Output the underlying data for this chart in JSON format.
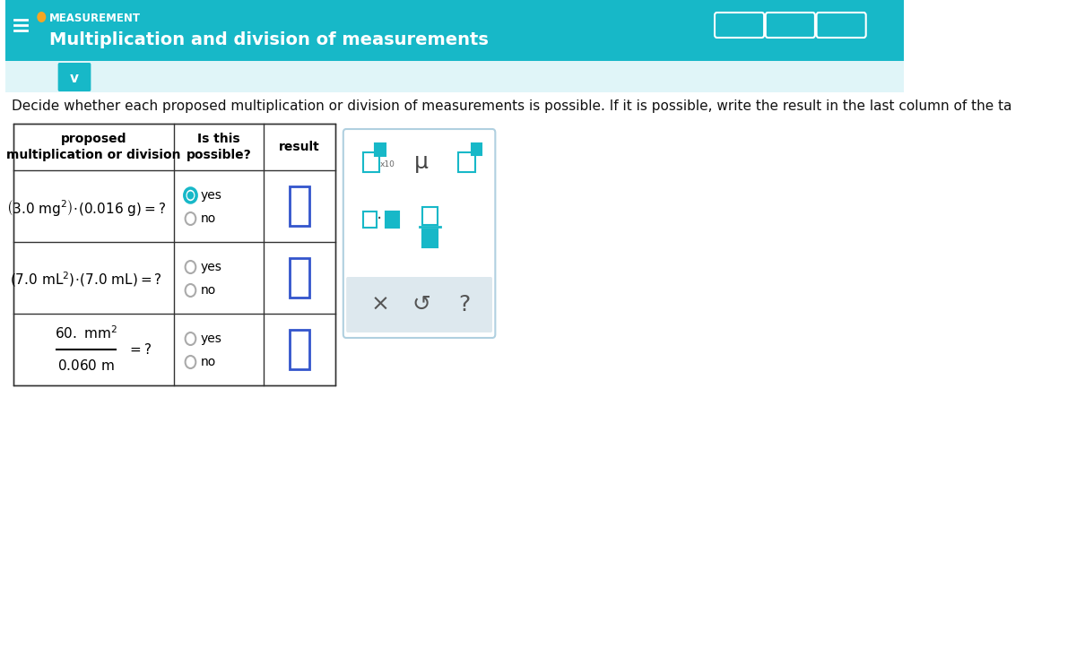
{
  "header_bg": "#17b8c8",
  "header_text_color": "#ffffff",
  "header_label": "MEASUREMENT",
  "header_title": "Multiplication and division of measurements",
  "body_bg": "#ffffff",
  "instruction_text": "Decide whether each proposed multiplication or division of measurements is possible. If it is possible, write the result in the last column of the ta",
  "table_border_color": "#333333",
  "table_header_bg": "#ffffff",
  "col1_header": "proposed\nmultiplication or division",
  "col2_header": "Is this\npossible?",
  "col3_header": "result",
  "rows": [
    {
      "expr_main": "(3.0 mg²)·(0.016 g) = ?",
      "yes_selected": true,
      "no_selected": false
    },
    {
      "expr_main": "(7.0 mL²)·(7.0 mL) = ?",
      "yes_selected": false,
      "no_selected": false
    },
    {
      "expr_frac_num": "60. mm²",
      "expr_frac_den": "0.060 m",
      "expr_eq": "= ?",
      "yes_selected": false,
      "no_selected": false
    }
  ],
  "teal": "#17b8c8",
  "radio_selected_color": "#17b8c8",
  "radio_unselected_color": "#aaaaaa",
  "result_box_color": "#3355cc",
  "toolbar_bg": "#e8f4f8",
  "toolbar_border": "#b0d0e0"
}
